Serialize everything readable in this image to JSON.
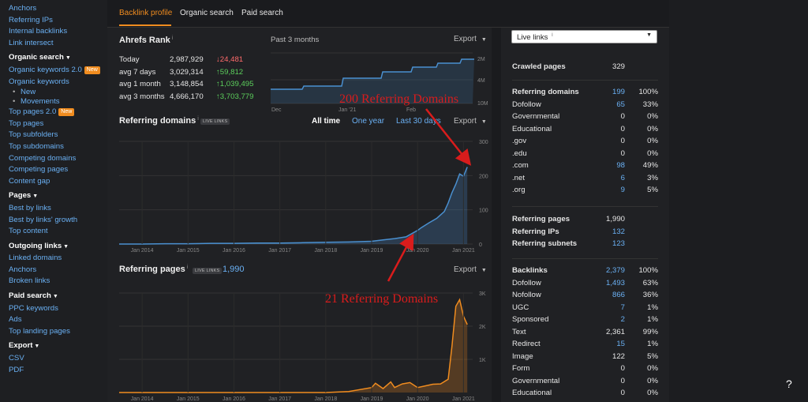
{
  "sidebar": {
    "items": [
      {
        "type": "link",
        "label": "Anchors"
      },
      {
        "type": "link",
        "label": "Referring IPs"
      },
      {
        "type": "link",
        "label": "Internal backlinks"
      },
      {
        "type": "link",
        "label": "Link intersect"
      },
      {
        "type": "head",
        "label": "Organic search"
      },
      {
        "type": "link",
        "label": "Organic keywords 2.0",
        "badge": "New"
      },
      {
        "type": "link",
        "label": "Organic keywords"
      },
      {
        "type": "sub",
        "label": "New"
      },
      {
        "type": "sub",
        "label": "Movements"
      },
      {
        "type": "link",
        "label": "Top pages 2.0",
        "badge": "New"
      },
      {
        "type": "link",
        "label": "Top pages"
      },
      {
        "type": "link",
        "label": "Top subfolders"
      },
      {
        "type": "link",
        "label": "Top subdomains"
      },
      {
        "type": "link",
        "label": "Competing domains"
      },
      {
        "type": "link",
        "label": "Competing pages"
      },
      {
        "type": "link",
        "label": "Content gap"
      },
      {
        "type": "head",
        "label": "Pages"
      },
      {
        "type": "link",
        "label": "Best by links"
      },
      {
        "type": "link",
        "label": "Best by links' growth"
      },
      {
        "type": "link",
        "label": "Top content"
      },
      {
        "type": "head",
        "label": "Outgoing links"
      },
      {
        "type": "link",
        "label": "Linked domains"
      },
      {
        "type": "link",
        "label": "Anchors"
      },
      {
        "type": "link",
        "label": "Broken links"
      },
      {
        "type": "head",
        "label": "Paid search"
      },
      {
        "type": "link",
        "label": "PPC keywords"
      },
      {
        "type": "link",
        "label": "Ads"
      },
      {
        "type": "link",
        "label": "Top landing pages"
      },
      {
        "type": "head",
        "label": "Export"
      },
      {
        "type": "link",
        "label": "CSV"
      },
      {
        "type": "link",
        "label": "PDF"
      }
    ]
  },
  "tabs": {
    "backlink_profile": "Backlink profile",
    "organic_search": "Organic search",
    "paid_search": "Paid search"
  },
  "ahrefs_rank": {
    "title": "Ahrefs Rank",
    "info": "i",
    "rows": [
      {
        "label": "Today",
        "value": "2,987,929",
        "change": "↓24,481",
        "dir": "down"
      },
      {
        "label": "avg 7 days",
        "value": "3,029,314",
        "change": "↑59,812",
        "dir": "up"
      },
      {
        "label": "avg 1 month",
        "value": "3,148,854",
        "change": "↑1,039,495",
        "dir": "up"
      },
      {
        "label": "avg 3 months",
        "value": "4,666,170",
        "change": "↑3,703,779",
        "dir": "up"
      }
    ],
    "period": "Past 3 months",
    "export": "Export"
  },
  "rank_chart": {
    "x_ticks": [
      "Dec",
      "Jan '21",
      "Feb"
    ],
    "y_ticks": [
      "2M",
      "4M",
      "10M"
    ]
  },
  "referring_domains": {
    "title": "Referring domains",
    "info": "i",
    "badge": "LIVE LINKS",
    "ranges": [
      "All time",
      "One year",
      "Last 30 days"
    ],
    "export": "Export"
  },
  "referring_pages": {
    "title": "Referring pages",
    "info": "i",
    "badge": "LIVE LINKS",
    "count": "1,990",
    "export": "Export"
  },
  "chart_data": [
    {
      "type": "area",
      "series": [
        {
          "name": "Referring domains",
          "color": "#4a90d0"
        }
      ],
      "x": [
        "2013-07",
        "2014-01",
        "2014-07",
        "2015-01",
        "2015-07",
        "2016-01",
        "2016-07",
        "2017-01",
        "2017-07",
        "2018-01",
        "2018-07",
        "2019-01",
        "2019-04",
        "2019-07",
        "2019-10",
        "2020-01",
        "2020-02",
        "2020-04",
        "2020-06",
        "2020-08",
        "2020-09",
        "2020-10",
        "2020-11",
        "2020-12",
        "2021-01",
        "2021-02"
      ],
      "y": [
        0,
        0,
        1,
        1,
        2,
        2,
        3,
        3,
        4,
        5,
        6,
        8,
        12,
        16,
        21,
        40,
        48,
        62,
        75,
        95,
        120,
        150,
        175,
        205,
        198,
        225
      ],
      "x_tick_labels": [
        "Jan 2014",
        "Jan 2015",
        "Jan 2016",
        "Jan 2017",
        "Jan 2018",
        "Jan 2019",
        "Jan 2020",
        "Jan 2021"
      ],
      "ylim": [
        0,
        300
      ],
      "y_ticks": [
        0,
        100,
        200,
        300
      ]
    },
    {
      "type": "area",
      "series": [
        {
          "name": "Referring pages",
          "color": "#f08c1f"
        }
      ],
      "x": [
        "2013-07",
        "2014-01",
        "2015-01",
        "2016-01",
        "2017-01",
        "2018-01",
        "2018-07",
        "2019-01",
        "2019-02",
        "2019-04",
        "2019-06",
        "2019-07",
        "2019-09",
        "2019-11",
        "2020-01",
        "2020-03",
        "2020-05",
        "2020-07",
        "2020-09",
        "2020-10",
        "2020-11",
        "2020-12",
        "2021-01",
        "2021-02"
      ],
      "y": [
        0,
        0,
        0,
        0,
        0,
        0,
        30,
        150,
        280,
        120,
        320,
        150,
        260,
        300,
        150,
        200,
        250,
        260,
        400,
        1400,
        2600,
        2800,
        2300,
        2050
      ],
      "x_tick_labels": [
        "Jan 2014",
        "Jan 2015",
        "Jan 2016",
        "Jan 2017",
        "Jan 2018",
        "Jan 2019",
        "Jan 2020",
        "Jan 2021"
      ],
      "ylim": [
        0,
        3000
      ],
      "y_ticks": [
        "1K",
        "2K",
        "3K"
      ]
    }
  ],
  "annotations": {
    "top": "200 Referring Domains",
    "bottom": "21 Referring Domains"
  },
  "right_panel": {
    "select_value": "Live links",
    "select_info": "i",
    "crawled": {
      "label": "Crawled pages",
      "value": "329"
    },
    "domains": [
      {
        "label": "Referring domains",
        "value": "199",
        "pct": "100%",
        "bold": true,
        "blue": true
      },
      {
        "label": "Dofollow",
        "value": "65",
        "pct": "33%",
        "blue": true
      },
      {
        "label": "Governmental",
        "value": "0",
        "pct": "0%"
      },
      {
        "label": "Educational",
        "value": "0",
        "pct": "0%"
      },
      {
        "label": ".gov",
        "value": "0",
        "pct": "0%"
      },
      {
        "label": ".edu",
        "value": "0",
        "pct": "0%"
      },
      {
        "label": ".com",
        "value": "98",
        "pct": "49%",
        "blue": true
      },
      {
        "label": ".net",
        "value": "6",
        "pct": "3%",
        "blue": true
      },
      {
        "label": ".org",
        "value": "9",
        "pct": "5%",
        "blue": true
      }
    ],
    "pages": [
      {
        "label": "Referring pages",
        "value": "1,990",
        "bold": true
      },
      {
        "label": "Referring IPs",
        "value": "132",
        "bold": true,
        "blue": true
      },
      {
        "label": "Referring subnets",
        "value": "123",
        "bold": true,
        "blue": true
      }
    ],
    "backlinks": [
      {
        "label": "Backlinks",
        "value": "2,379",
        "pct": "100%",
        "bold": true,
        "blue": true
      },
      {
        "label": "Dofollow",
        "value": "1,493",
        "pct": "63%",
        "blue": true
      },
      {
        "label": "Nofollow",
        "value": "866",
        "pct": "36%",
        "blue": true
      },
      {
        "label": "UGC",
        "value": "7",
        "pct": "1%",
        "blue": true
      },
      {
        "label": "Sponsored",
        "value": "2",
        "pct": "1%",
        "blue": true
      },
      {
        "label": "Text",
        "value": "2,361",
        "pct": "99%"
      },
      {
        "label": "Redirect",
        "value": "15",
        "pct": "1%",
        "blue": true
      },
      {
        "label": "Image",
        "value": "122",
        "pct": "5%"
      },
      {
        "label": "Form",
        "value": "0",
        "pct": "0%"
      },
      {
        "label": "Governmental",
        "value": "0",
        "pct": "0%"
      },
      {
        "label": "Educational",
        "value": "0",
        "pct": "0%"
      }
    ]
  },
  "help": "?"
}
